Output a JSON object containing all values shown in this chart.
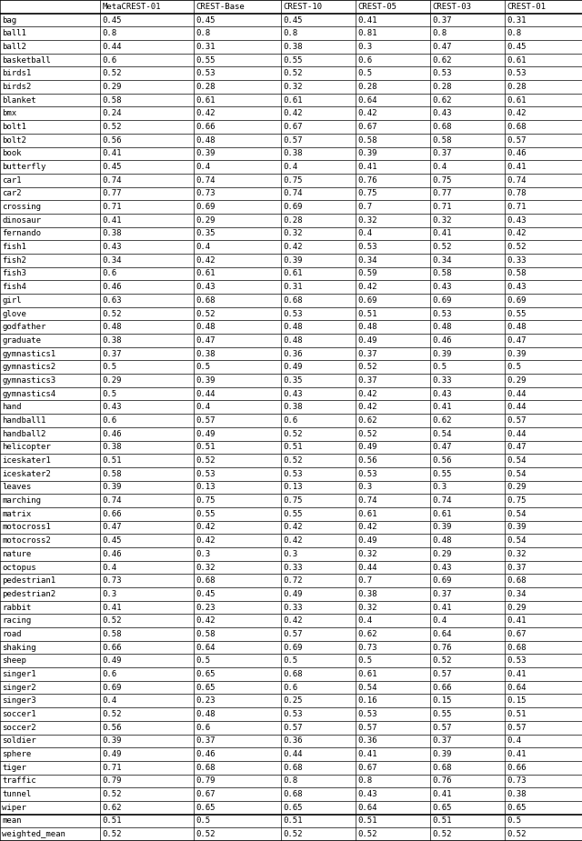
{
  "columns": [
    "",
    "MetaCREST-01",
    "CREST-Base",
    "CREST-10",
    "CREST-05",
    "CREST-03",
    "CREST-01"
  ],
  "rows": [
    [
      "bag",
      "0.45",
      "0.45",
      "0.45",
      "0.41",
      "0.37",
      "0.31"
    ],
    [
      "ball1",
      "0.8",
      "0.8",
      "0.8",
      "0.81",
      "0.8",
      "0.8"
    ],
    [
      "ball2",
      "0.44",
      "0.31",
      "0.38",
      "0.3",
      "0.47",
      "0.45"
    ],
    [
      "basketball",
      "0.6",
      "0.55",
      "0.55",
      "0.6",
      "0.62",
      "0.61"
    ],
    [
      "birds1",
      "0.52",
      "0.53",
      "0.52",
      "0.5",
      "0.53",
      "0.53"
    ],
    [
      "birds2",
      "0.29",
      "0.28",
      "0.32",
      "0.28",
      "0.28",
      "0.28"
    ],
    [
      "blanket",
      "0.58",
      "0.61",
      "0.61",
      "0.64",
      "0.62",
      "0.61"
    ],
    [
      "bmx",
      "0.24",
      "0.42",
      "0.42",
      "0.42",
      "0.43",
      "0.42"
    ],
    [
      "bolt1",
      "0.52",
      "0.66",
      "0.67",
      "0.67",
      "0.68",
      "0.68"
    ],
    [
      "bolt2",
      "0.56",
      "0.48",
      "0.57",
      "0.58",
      "0.58",
      "0.57"
    ],
    [
      "book",
      "0.41",
      "0.39",
      "0.38",
      "0.39",
      "0.37",
      "0.46"
    ],
    [
      "butterfly",
      "0.45",
      "0.4",
      "0.4",
      "0.41",
      "0.4",
      "0.41"
    ],
    [
      "car1",
      "0.74",
      "0.74",
      "0.75",
      "0.76",
      "0.75",
      "0.74"
    ],
    [
      "car2",
      "0.77",
      "0.73",
      "0.74",
      "0.75",
      "0.77",
      "0.78"
    ],
    [
      "crossing",
      "0.71",
      "0.69",
      "0.69",
      "0.7",
      "0.71",
      "0.71"
    ],
    [
      "dinosaur",
      "0.41",
      "0.29",
      "0.28",
      "0.32",
      "0.32",
      "0.43"
    ],
    [
      "fernando",
      "0.38",
      "0.35",
      "0.32",
      "0.4",
      "0.41",
      "0.42"
    ],
    [
      "fish1",
      "0.43",
      "0.4",
      "0.42",
      "0.53",
      "0.52",
      "0.52"
    ],
    [
      "fish2",
      "0.34",
      "0.42",
      "0.39",
      "0.34",
      "0.34",
      "0.33"
    ],
    [
      "fish3",
      "0.6",
      "0.61",
      "0.61",
      "0.59",
      "0.58",
      "0.58"
    ],
    [
      "fish4",
      "0.46",
      "0.43",
      "0.31",
      "0.42",
      "0.43",
      "0.43"
    ],
    [
      "girl",
      "0.63",
      "0.68",
      "0.68",
      "0.69",
      "0.69",
      "0.69"
    ],
    [
      "glove",
      "0.52",
      "0.52",
      "0.53",
      "0.51",
      "0.53",
      "0.55"
    ],
    [
      "godfather",
      "0.48",
      "0.48",
      "0.48",
      "0.48",
      "0.48",
      "0.48"
    ],
    [
      "graduate",
      "0.38",
      "0.47",
      "0.48",
      "0.49",
      "0.46",
      "0.47"
    ],
    [
      "gymnastics1",
      "0.37",
      "0.38",
      "0.36",
      "0.37",
      "0.39",
      "0.39"
    ],
    [
      "gymnastics2",
      "0.5",
      "0.5",
      "0.49",
      "0.52",
      "0.5",
      "0.5"
    ],
    [
      "gymnastics3",
      "0.29",
      "0.39",
      "0.35",
      "0.37",
      "0.33",
      "0.29"
    ],
    [
      "gymnastics4",
      "0.5",
      "0.44",
      "0.43",
      "0.42",
      "0.43",
      "0.44"
    ],
    [
      "hand",
      "0.43",
      "0.4",
      "0.38",
      "0.42",
      "0.41",
      "0.44"
    ],
    [
      "handball1",
      "0.6",
      "0.57",
      "0.6",
      "0.62",
      "0.62",
      "0.57"
    ],
    [
      "handball2",
      "0.46",
      "0.49",
      "0.52",
      "0.52",
      "0.54",
      "0.44"
    ],
    [
      "helicopter",
      "0.38",
      "0.51",
      "0.51",
      "0.49",
      "0.47",
      "0.47"
    ],
    [
      "iceskater1",
      "0.51",
      "0.52",
      "0.52",
      "0.56",
      "0.56",
      "0.54"
    ],
    [
      "iceskater2",
      "0.58",
      "0.53",
      "0.53",
      "0.53",
      "0.55",
      "0.54"
    ],
    [
      "leaves",
      "0.39",
      "0.13",
      "0.13",
      "0.3",
      "0.3",
      "0.29"
    ],
    [
      "marching",
      "0.74",
      "0.75",
      "0.75",
      "0.74",
      "0.74",
      "0.75"
    ],
    [
      "matrix",
      "0.66",
      "0.55",
      "0.55",
      "0.61",
      "0.61",
      "0.54"
    ],
    [
      "motocross1",
      "0.47",
      "0.42",
      "0.42",
      "0.42",
      "0.39",
      "0.39"
    ],
    [
      "motocross2",
      "0.45",
      "0.42",
      "0.42",
      "0.49",
      "0.48",
      "0.54"
    ],
    [
      "nature",
      "0.46",
      "0.3",
      "0.3",
      "0.32",
      "0.29",
      "0.32"
    ],
    [
      "octopus",
      "0.4",
      "0.32",
      "0.33",
      "0.44",
      "0.43",
      "0.37"
    ],
    [
      "pedestrian1",
      "0.73",
      "0.68",
      "0.72",
      "0.7",
      "0.69",
      "0.68"
    ],
    [
      "pedestrian2",
      "0.3",
      "0.45",
      "0.49",
      "0.38",
      "0.37",
      "0.34"
    ],
    [
      "rabbit",
      "0.41",
      "0.23",
      "0.33",
      "0.32",
      "0.41",
      "0.29"
    ],
    [
      "racing",
      "0.52",
      "0.42",
      "0.42",
      "0.4",
      "0.4",
      "0.41"
    ],
    [
      "road",
      "0.58",
      "0.58",
      "0.57",
      "0.62",
      "0.64",
      "0.67"
    ],
    [
      "shaking",
      "0.66",
      "0.64",
      "0.69",
      "0.73",
      "0.76",
      "0.68"
    ],
    [
      "sheep",
      "0.49",
      "0.5",
      "0.5",
      "0.5",
      "0.52",
      "0.53"
    ],
    [
      "singer1",
      "0.6",
      "0.65",
      "0.68",
      "0.61",
      "0.57",
      "0.41"
    ],
    [
      "singer2",
      "0.69",
      "0.65",
      "0.6",
      "0.54",
      "0.66",
      "0.64"
    ],
    [
      "singer3",
      "0.4",
      "0.23",
      "0.25",
      "0.16",
      "0.15",
      "0.15"
    ],
    [
      "soccer1",
      "0.52",
      "0.48",
      "0.53",
      "0.53",
      "0.55",
      "0.51"
    ],
    [
      "soccer2",
      "0.56",
      "0.6",
      "0.57",
      "0.57",
      "0.57",
      "0.57"
    ],
    [
      "soldier",
      "0.39",
      "0.37",
      "0.36",
      "0.36",
      "0.37",
      "0.4"
    ],
    [
      "sphere",
      "0.49",
      "0.46",
      "0.44",
      "0.41",
      "0.39",
      "0.41"
    ],
    [
      "tiger",
      "0.71",
      "0.68",
      "0.68",
      "0.67",
      "0.68",
      "0.66"
    ],
    [
      "traffic",
      "0.79",
      "0.79",
      "0.8",
      "0.8",
      "0.76",
      "0.73"
    ],
    [
      "tunnel",
      "0.52",
      "0.67",
      "0.68",
      "0.43",
      "0.41",
      "0.38"
    ],
    [
      "wiper",
      "0.62",
      "0.65",
      "0.65",
      "0.64",
      "0.65",
      "0.65"
    ]
  ],
  "summary_rows": [
    [
      "mean",
      "0.51",
      "0.5",
      "0.51",
      "0.51",
      "0.51",
      "0.5"
    ],
    [
      "weighted_mean",
      "0.52",
      "0.52",
      "0.52",
      "0.52",
      "0.52",
      "0.52"
    ]
  ],
  "font_size": 6.5,
  "font_family": "monospace",
  "fig_width": 6.4,
  "fig_height": 9.25,
  "dpi": 100
}
